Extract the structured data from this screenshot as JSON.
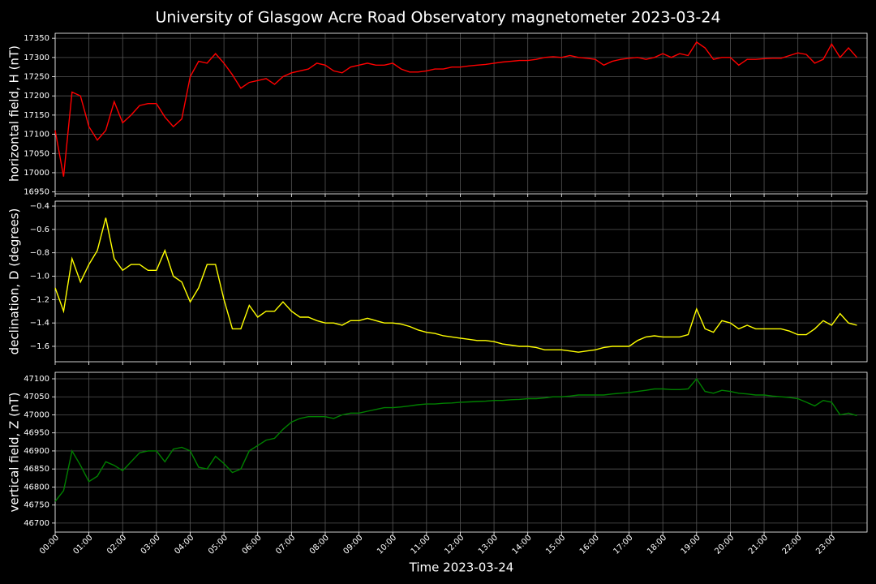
{
  "chart_data": [
    {
      "type": "line",
      "title": "University of Glasgow Acre Road Observatory magnetometer 2023-03-24",
      "ylabel": "horizontal field, H (nT)",
      "color": "#ff0000",
      "grid": true,
      "xlim": [
        0,
        24.05
      ],
      "ylim": [
        16945,
        17363
      ],
      "yticks": [
        16950,
        17000,
        17050,
        17100,
        17150,
        17200,
        17250,
        17300,
        17350
      ],
      "x": [
        0,
        0.25,
        0.5,
        0.75,
        1,
        1.25,
        1.5,
        1.75,
        2,
        2.25,
        2.5,
        2.75,
        3,
        3.25,
        3.5,
        3.75,
        4,
        4.25,
        4.5,
        4.75,
        5,
        5.25,
        5.5,
        5.75,
        6,
        6.25,
        6.5,
        6.75,
        7,
        7.25,
        7.5,
        7.75,
        8,
        8.25,
        8.5,
        8.75,
        9,
        9.25,
        9.5,
        9.75,
        10,
        10.25,
        10.5,
        10.75,
        11,
        11.25,
        11.5,
        11.75,
        12,
        12.25,
        12.5,
        12.75,
        13,
        13.25,
        13.5,
        13.75,
        14,
        14.25,
        14.5,
        14.75,
        15,
        15.25,
        15.5,
        15.75,
        16,
        16.25,
        16.5,
        16.75,
        17,
        17.25,
        17.5,
        17.75,
        18,
        18.25,
        18.5,
        18.75,
        19,
        19.25,
        19.5,
        19.75,
        20,
        20.25,
        20.5,
        20.75,
        21,
        21.25,
        21.5,
        21.75,
        22,
        22.25,
        22.5,
        22.75,
        23,
        23.25,
        23.5,
        23.75
      ],
      "values": [
        17110,
        16990,
        17210,
        17200,
        17120,
        17085,
        17110,
        17185,
        17130,
        17150,
        17175,
        17180,
        17180,
        17145,
        17120,
        17140,
        17250,
        17290,
        17285,
        17310,
        17285,
        17255,
        17220,
        17235,
        17240,
        17245,
        17230,
        17250,
        17260,
        17265,
        17270,
        17285,
        17280,
        17265,
        17260,
        17275,
        17280,
        17285,
        17280,
        17280,
        17285,
        17270,
        17262,
        17262,
        17265,
        17270,
        17270,
        17275,
        17275,
        17278,
        17280,
        17282,
        17285,
        17288,
        17290,
        17292,
        17292,
        17295,
        17300,
        17302,
        17300,
        17305,
        17300,
        17298,
        17295,
        17280,
        17290,
        17295,
        17298,
        17300,
        17295,
        17300,
        17310,
        17300,
        17310,
        17305,
        17340,
        17325,
        17295,
        17300,
        17300,
        17280,
        17295,
        17295,
        17297,
        17298,
        17298,
        17305,
        17312,
        17308,
        17285,
        17295,
        17335,
        17300,
        17325,
        17300
      ]
    },
    {
      "type": "line",
      "ylabel": "declination, D (degrees)",
      "color": "#ffff00",
      "grid": true,
      "xlim": [
        0,
        24.05
      ],
      "ylim": [
        -1.732,
        -0.358
      ],
      "yticks": [
        {
          "value": -1.6,
          "label": "−1.6"
        },
        {
          "value": -1.4,
          "label": "−1.4"
        },
        {
          "value": -1.2,
          "label": "−1.2"
        },
        {
          "value": -1.0,
          "label": "−1.0"
        },
        {
          "value": -0.8,
          "label": "−0.8"
        },
        {
          "value": -0.6,
          "label": "−0.6"
        },
        {
          "value": -0.4,
          "label": "−0.4"
        }
      ],
      "x": [
        0,
        0.25,
        0.5,
        0.75,
        1,
        1.25,
        1.5,
        1.75,
        2,
        2.25,
        2.5,
        2.75,
        3,
        3.25,
        3.5,
        3.75,
        4,
        4.25,
        4.5,
        4.75,
        5,
        5.25,
        5.5,
        5.75,
        6,
        6.25,
        6.5,
        6.75,
        7,
        7.25,
        7.5,
        7.75,
        8,
        8.25,
        8.5,
        8.75,
        9,
        9.25,
        9.5,
        9.75,
        10,
        10.25,
        10.5,
        10.75,
        11,
        11.25,
        11.5,
        11.75,
        12,
        12.25,
        12.5,
        12.75,
        13,
        13.25,
        13.5,
        13.75,
        14,
        14.25,
        14.5,
        14.75,
        15,
        15.25,
        15.5,
        15.75,
        16,
        16.25,
        16.5,
        16.75,
        17,
        17.25,
        17.5,
        17.75,
        18,
        18.25,
        18.5,
        18.75,
        19,
        19.25,
        19.5,
        19.75,
        20,
        20.25,
        20.5,
        20.75,
        21,
        21.25,
        21.5,
        21.75,
        22,
        22.25,
        22.5,
        22.75,
        23,
        23.25,
        23.5,
        23.75
      ],
      "values": [
        -1.1,
        -1.3,
        -0.85,
        -1.05,
        -0.9,
        -0.78,
        -0.5,
        -0.85,
        -0.95,
        -0.9,
        -0.9,
        -0.95,
        -0.95,
        -0.78,
        -1.0,
        -1.05,
        -1.22,
        -1.1,
        -0.9,
        -0.9,
        -1.2,
        -1.45,
        -1.45,
        -1.25,
        -1.35,
        -1.3,
        -1.3,
        -1.22,
        -1.3,
        -1.35,
        -1.35,
        -1.38,
        -1.4,
        -1.4,
        -1.42,
        -1.38,
        -1.38,
        -1.36,
        -1.38,
        -1.4,
        -1.4,
        -1.41,
        -1.43,
        -1.46,
        -1.48,
        -1.49,
        -1.51,
        -1.52,
        -1.53,
        -1.54,
        -1.55,
        -1.55,
        -1.56,
        -1.58,
        -1.59,
        -1.6,
        -1.6,
        -1.61,
        -1.63,
        -1.63,
        -1.63,
        -1.64,
        -1.65,
        -1.64,
        -1.63,
        -1.61,
        -1.6,
        -1.6,
        -1.6,
        -1.55,
        -1.52,
        -1.51,
        -1.52,
        -1.52,
        -1.52,
        -1.5,
        -1.28,
        -1.45,
        -1.48,
        -1.38,
        -1.4,
        -1.45,
        -1.42,
        -1.45,
        -1.45,
        -1.45,
        -1.45,
        -1.47,
        -1.5,
        -1.5,
        -1.45,
        -1.38,
        -1.42,
        -1.32,
        -1.4,
        -1.42
      ]
    },
    {
      "type": "line",
      "ylabel": "vertical field, Z (nT)",
      "xlabel": "Time 2023-03-24",
      "color": "#008000",
      "grid": true,
      "xlim": [
        0,
        24.05
      ],
      "ylim": [
        46675,
        47118
      ],
      "yticks": [
        46700,
        46750,
        46800,
        46850,
        46900,
        46950,
        47000,
        47050,
        47100
      ],
      "xticks": [
        {
          "value": 0,
          "label": "00:00"
        },
        {
          "value": 1,
          "label": "01:00"
        },
        {
          "value": 2,
          "label": "02:00"
        },
        {
          "value": 3,
          "label": "03:00"
        },
        {
          "value": 4,
          "label": "04:00"
        },
        {
          "value": 5,
          "label": "05:00"
        },
        {
          "value": 6,
          "label": "06:00"
        },
        {
          "value": 7,
          "label": "07:00"
        },
        {
          "value": 8,
          "label": "08:00"
        },
        {
          "value": 9,
          "label": "09:00"
        },
        {
          "value": 10,
          "label": "10:00"
        },
        {
          "value": 11,
          "label": "11:00"
        },
        {
          "value": 12,
          "label": "12:00"
        },
        {
          "value": 13,
          "label": "13:00"
        },
        {
          "value": 14,
          "label": "14:00"
        },
        {
          "value": 15,
          "label": "15:00"
        },
        {
          "value": 16,
          "label": "16:00"
        },
        {
          "value": 17,
          "label": "17:00"
        },
        {
          "value": 18,
          "label": "18:00"
        },
        {
          "value": 19,
          "label": "19:00"
        },
        {
          "value": 20,
          "label": "20:00"
        },
        {
          "value": 21,
          "label": "21:00"
        },
        {
          "value": 22,
          "label": "22:00"
        },
        {
          "value": 23,
          "label": "23:00"
        }
      ],
      "x": [
        0,
        0.25,
        0.5,
        0.75,
        1,
        1.25,
        1.5,
        1.75,
        2,
        2.25,
        2.5,
        2.75,
        3,
        3.25,
        3.5,
        3.75,
        4,
        4.25,
        4.5,
        4.75,
        5,
        5.25,
        5.5,
        5.75,
        6,
        6.25,
        6.5,
        6.75,
        7,
        7.25,
        7.5,
        7.75,
        8,
        8.25,
        8.5,
        8.75,
        9,
        9.25,
        9.5,
        9.75,
        10,
        10.25,
        10.5,
        10.75,
        11,
        11.25,
        11.5,
        11.75,
        12,
        12.25,
        12.5,
        12.75,
        13,
        13.25,
        13.5,
        13.75,
        14,
        14.25,
        14.5,
        14.75,
        15,
        15.25,
        15.5,
        15.75,
        16,
        16.25,
        16.5,
        16.75,
        17,
        17.25,
        17.5,
        17.75,
        18,
        18.25,
        18.5,
        18.75,
        19,
        19.25,
        19.5,
        19.75,
        20,
        20.25,
        20.5,
        20.75,
        21,
        21.25,
        21.5,
        21.75,
        22,
        22.25,
        22.5,
        22.75,
        23,
        23.25,
        23.5,
        23.75
      ],
      "values": [
        46760,
        46790,
        46900,
        46860,
        46815,
        46830,
        46870,
        46860,
        46845,
        46870,
        46895,
        46900,
        46900,
        46870,
        46905,
        46910,
        46900,
        46855,
        46850,
        46885,
        46865,
        46840,
        46850,
        46900,
        46915,
        46930,
        46935,
        46960,
        46980,
        46990,
        46995,
        46995,
        46995,
        46990,
        47000,
        47005,
        47005,
        47010,
        47015,
        47020,
        47020,
        47022,
        47025,
        47028,
        47030,
        47030,
        47032,
        47033,
        47035,
        47036,
        47037,
        47038,
        47040,
        47040,
        47042,
        47043,
        47045,
        47045,
        47047,
        47050,
        47050,
        47052,
        47055,
        47055,
        47055,
        47055,
        47058,
        47060,
        47062,
        47065,
        47068,
        47072,
        47072,
        47070,
        47070,
        47072,
        47100,
        47065,
        47060,
        47068,
        47065,
        47060,
        47058,
        47055,
        47055,
        47052,
        47050,
        47048,
        47045,
        47035,
        47025,
        47040,
        47035,
        47000,
        47005,
        46998
      ]
    }
  ]
}
